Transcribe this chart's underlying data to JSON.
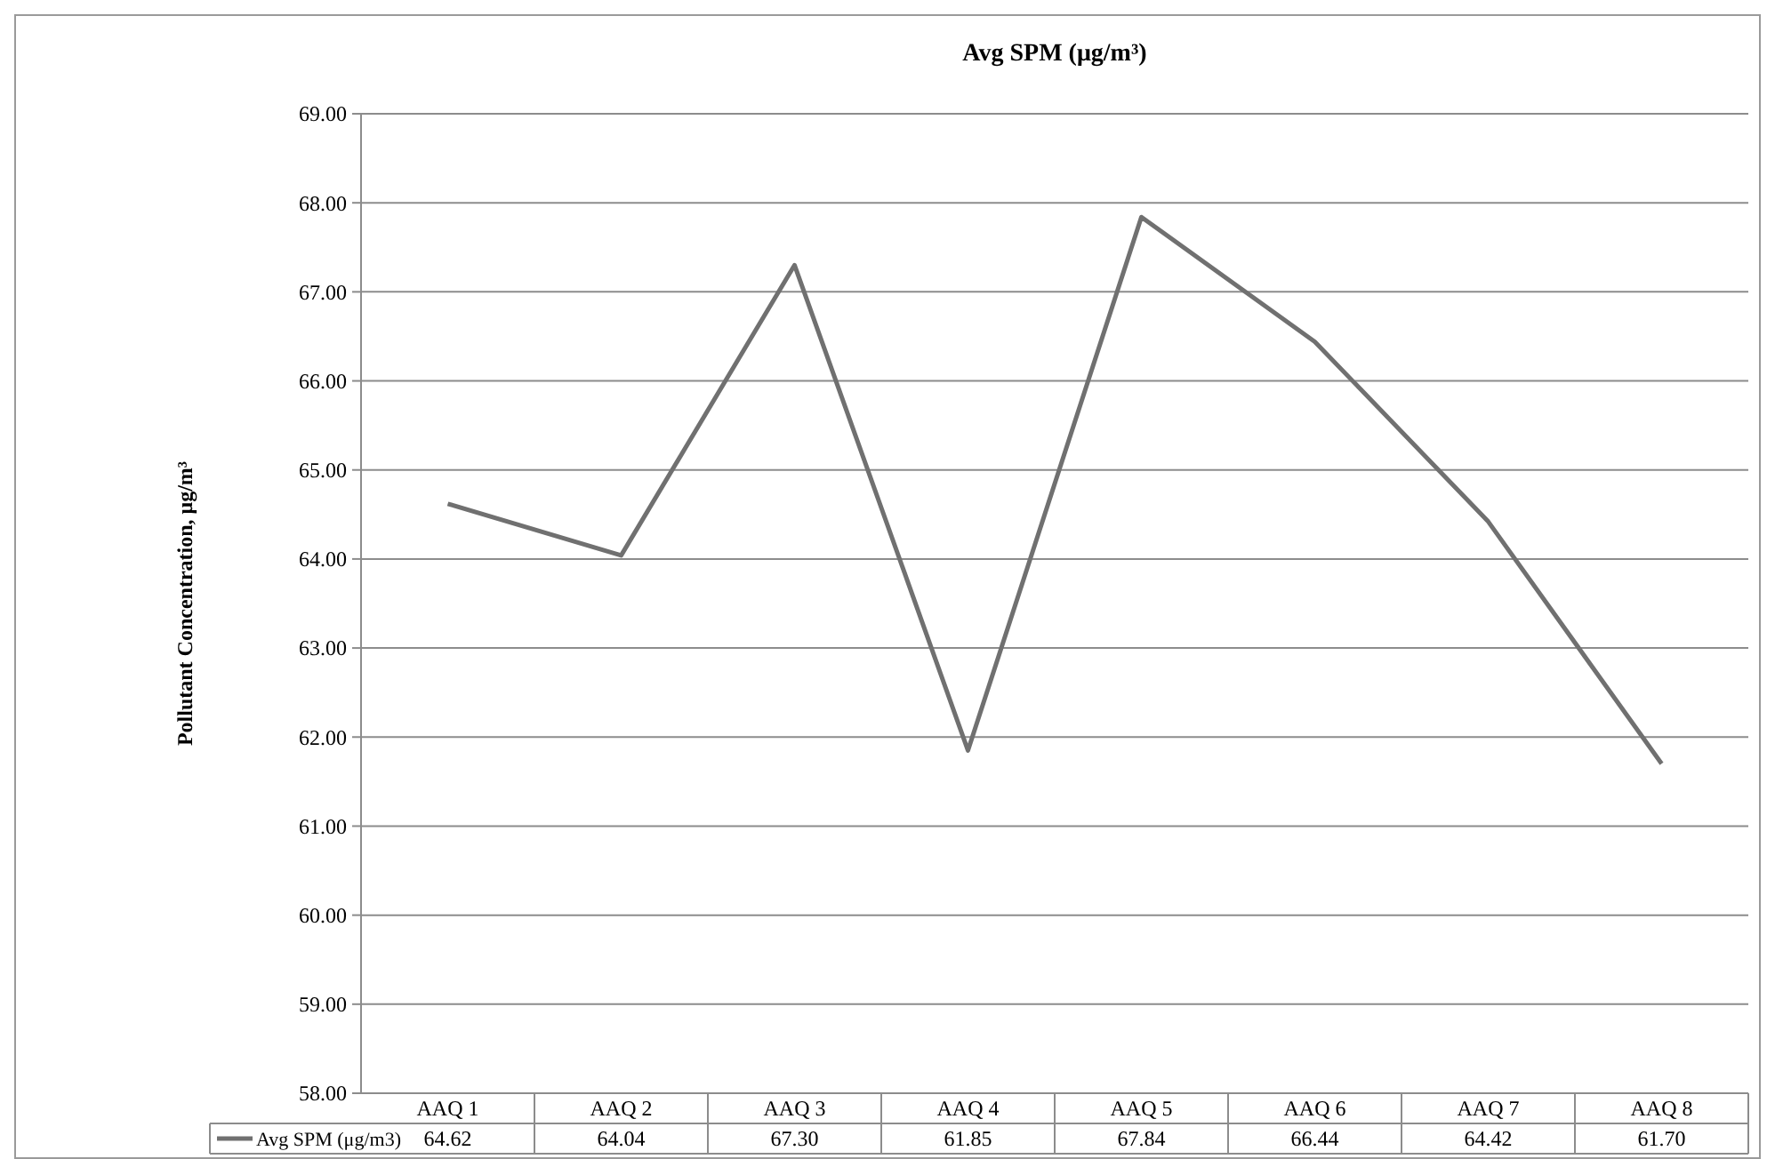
{
  "chart_data": {
    "type": "line",
    "title": "Avg SPM (μg/m³)",
    "ylabel": "Pollutant Concentration, μg/m³",
    "categories": [
      "AAQ 1",
      "AAQ 2",
      "AAQ 3",
      "AAQ 4",
      "AAQ 5",
      "AAQ 6",
      "AAQ 7",
      "AAQ 8"
    ],
    "series": [
      {
        "name": "Avg SPM (μg/m3)",
        "color": "#707070",
        "values": [
          64.62,
          64.04,
          67.3,
          61.85,
          67.84,
          66.44,
          64.42,
          61.7
        ],
        "value_labels": [
          "64.62",
          "64.04",
          "67.30",
          "61.85",
          "67.84",
          "66.44",
          "64.42",
          "61.70"
        ]
      }
    ],
    "ylim": [
      58,
      69
    ],
    "yticks": [
      {
        "value": 58,
        "label": "58.00"
      },
      {
        "value": 59,
        "label": "59.00"
      },
      {
        "value": 60,
        "label": "60.00"
      },
      {
        "value": 61,
        "label": "61.00"
      },
      {
        "value": 62,
        "label": "62.00"
      },
      {
        "value": 63,
        "label": "63.00"
      },
      {
        "value": 64,
        "label": "64.00"
      },
      {
        "value": 65,
        "label": "65.00"
      },
      {
        "value": 66,
        "label": "66.00"
      },
      {
        "value": 67,
        "label": "67.00"
      },
      {
        "value": 68,
        "label": "68.00"
      },
      {
        "value": 69,
        "label": "69.00"
      }
    ],
    "grid": "y",
    "legend": "bottom",
    "marker": "none",
    "line_style": "solid"
  }
}
